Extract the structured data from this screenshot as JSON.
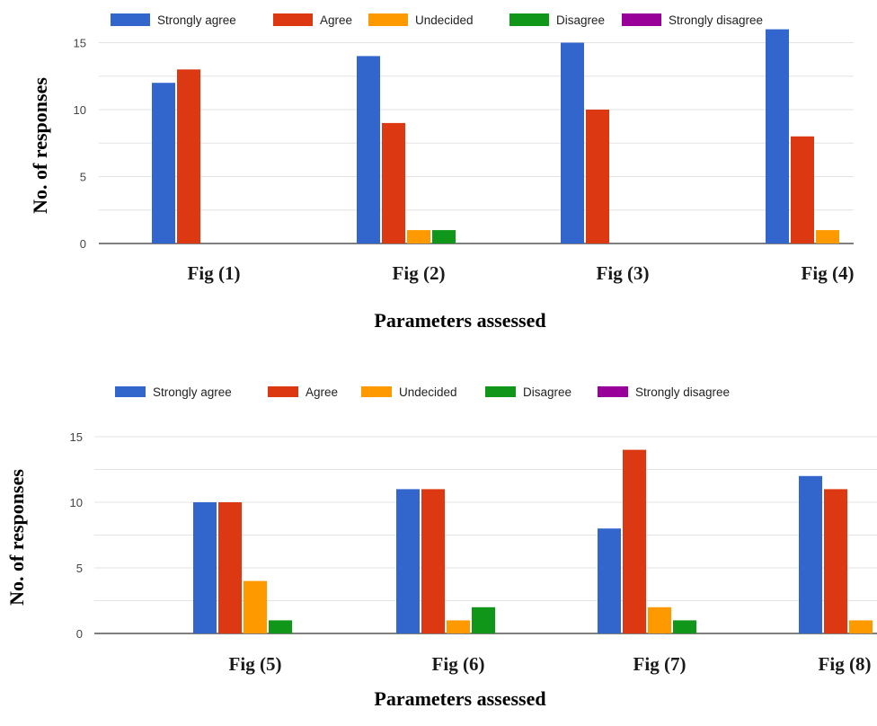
{
  "chart_data": [
    {
      "type": "bar",
      "categories": [
        "Fig (1)",
        "Fig (2)",
        "Fig (3)",
        "Fig (4)"
      ],
      "series": [
        {
          "name": "Strongly agree",
          "color": "#3366cc",
          "values": [
            12,
            14,
            15,
            16
          ]
        },
        {
          "name": "Agree",
          "color": "#dc3912",
          "values": [
            13,
            9,
            10,
            8
          ]
        },
        {
          "name": "Undecided",
          "color": "#ff9900",
          "values": [
            0,
            1,
            0,
            1
          ]
        },
        {
          "name": "Disagree",
          "color": "#109618",
          "values": [
            0,
            1,
            0,
            0
          ]
        },
        {
          "name": "Strongly disagree",
          "color": "#990099",
          "values": [
            0,
            0,
            0,
            0
          ]
        }
      ],
      "ylabel": "No. of responses",
      "xlabel": "Parameters assessed",
      "ylim": [
        0,
        16
      ],
      "yticks": [
        0,
        5,
        10,
        15
      ],
      "grid": true,
      "legend_position": "top"
    },
    {
      "type": "bar",
      "categories": [
        "Fig (5)",
        "Fig (6)",
        "Fig (7)",
        "Fig (8)"
      ],
      "series": [
        {
          "name": "Strongly agree",
          "color": "#3366cc",
          "values": [
            10,
            11,
            8,
            12
          ]
        },
        {
          "name": "Agree",
          "color": "#dc3912",
          "values": [
            10,
            11,
            14,
            11
          ]
        },
        {
          "name": "Undecided",
          "color": "#ff9900",
          "values": [
            4,
            1,
            2,
            1
          ]
        },
        {
          "name": "Disagree",
          "color": "#109618",
          "values": [
            1,
            2,
            1,
            0
          ]
        },
        {
          "name": "Strongly disagree",
          "color": "#990099",
          "values": [
            0,
            0,
            0,
            0
          ]
        }
      ],
      "ylabel": "No. of responses",
      "xlabel": "Parameters assessed",
      "ylim": [
        0,
        15
      ],
      "yticks": [
        0,
        5,
        10,
        15
      ],
      "grid": true,
      "legend_position": "top"
    }
  ]
}
